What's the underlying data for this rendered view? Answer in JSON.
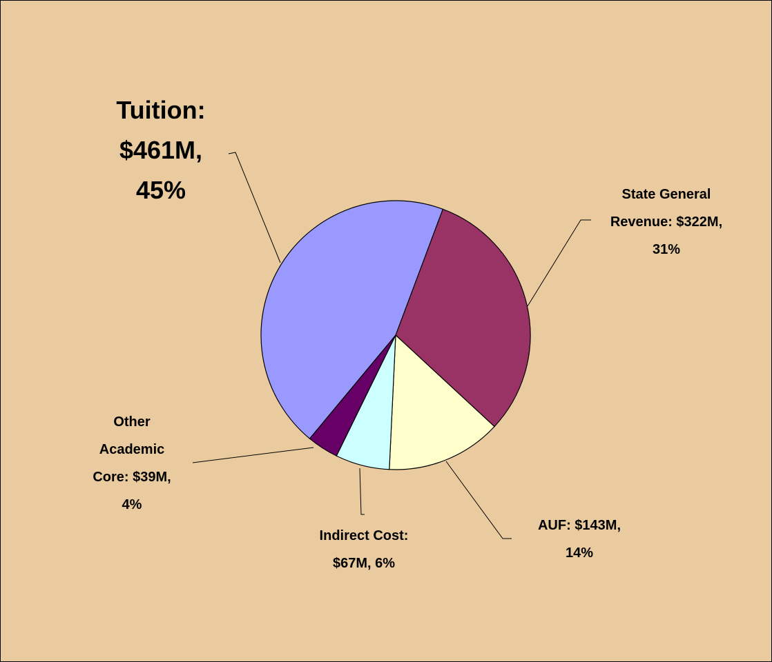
{
  "chart_data": {
    "type": "pie",
    "values": [
      322,
      143,
      67,
      39,
      461
    ],
    "value_labels": [
      "State General Revenue: $322M, 31%",
      "AUF: $143M, 14%",
      "Indirect Cost: $67M, 6%",
      "Other Academic Core: $39M, 4%",
      "Tuition: $461M, 45%"
    ],
    "colors": [
      "#993366",
      "#ffffcc",
      "#ccffff",
      "#660066",
      "#9999ff"
    ]
  }
}
